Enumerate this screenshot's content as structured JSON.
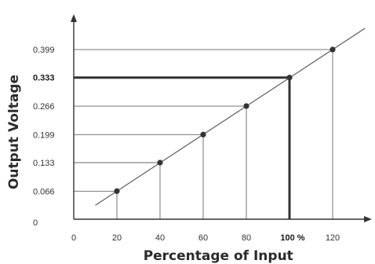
{
  "chart_data": {
    "type": "line",
    "xlabel": "Percentage of Input",
    "ylabel": "Output Voltage",
    "x_ticks": [
      "0",
      "20",
      "40",
      "60",
      "80",
      "100 %",
      "120"
    ],
    "x_tick_values": [
      0,
      20,
      40,
      60,
      80,
      100,
      120
    ],
    "y_ticks": [
      "0",
      "0.066",
      "0.133",
      "0.199",
      "0.266",
      "0.333",
      "0.399"
    ],
    "y_tick_values": [
      0,
      0.066,
      0.133,
      0.199,
      0.266,
      0.333,
      0.399
    ],
    "bold_x_tick": "100 %",
    "bold_y_tick": "0.333",
    "xlim": [
      0,
      135
    ],
    "ylim": [
      0,
      0.46
    ],
    "line_x_range": [
      10,
      135
    ],
    "points": [
      {
        "x": 20,
        "y": 0.066
      },
      {
        "x": 40,
        "y": 0.133
      },
      {
        "x": 60,
        "y": 0.199
      },
      {
        "x": 80,
        "y": 0.266
      },
      {
        "x": 100,
        "y": 0.333
      },
      {
        "x": 120,
        "y": 0.399
      }
    ],
    "highlight": {
      "x": 100,
      "y": 0.333
    },
    "colors": {
      "line": "#555555",
      "guide": "#666666",
      "highlight": "#333333",
      "point": "#333333",
      "axis": "#333333"
    }
  }
}
